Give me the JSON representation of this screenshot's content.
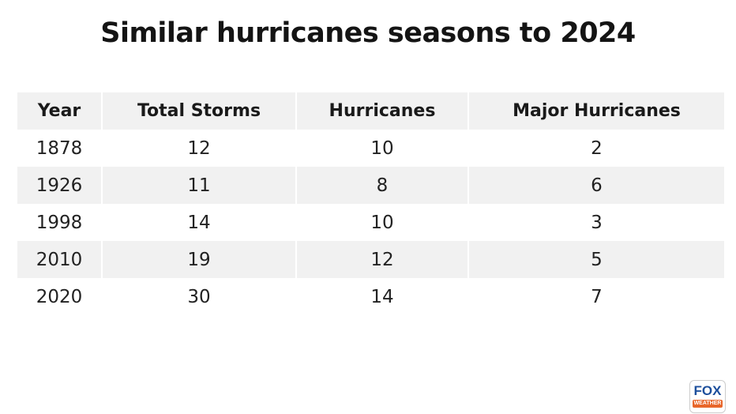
{
  "title": "Similar hurricanes seasons to 2024",
  "chart_data": {
    "type": "table",
    "title": "Similar hurricanes seasons to 2024",
    "columns": [
      "Year",
      "Total Storms",
      "Hurricanes",
      "Major Hurricanes"
    ],
    "rows": [
      [
        "1878",
        "12",
        "10",
        "2"
      ],
      [
        "1926",
        "11",
        "8",
        "6"
      ],
      [
        "1998",
        "14",
        "10",
        "3"
      ],
      [
        "2010",
        "19",
        "12",
        "5"
      ],
      [
        "2020",
        "30",
        "14",
        "7"
      ]
    ]
  },
  "logo": {
    "text_top": "FOX",
    "text_bottom": "WEATHER"
  },
  "colors": {
    "row_stripe": "#f1f1f1",
    "logo_blue": "#1d4f9c",
    "logo_orange": "#e8662a"
  }
}
